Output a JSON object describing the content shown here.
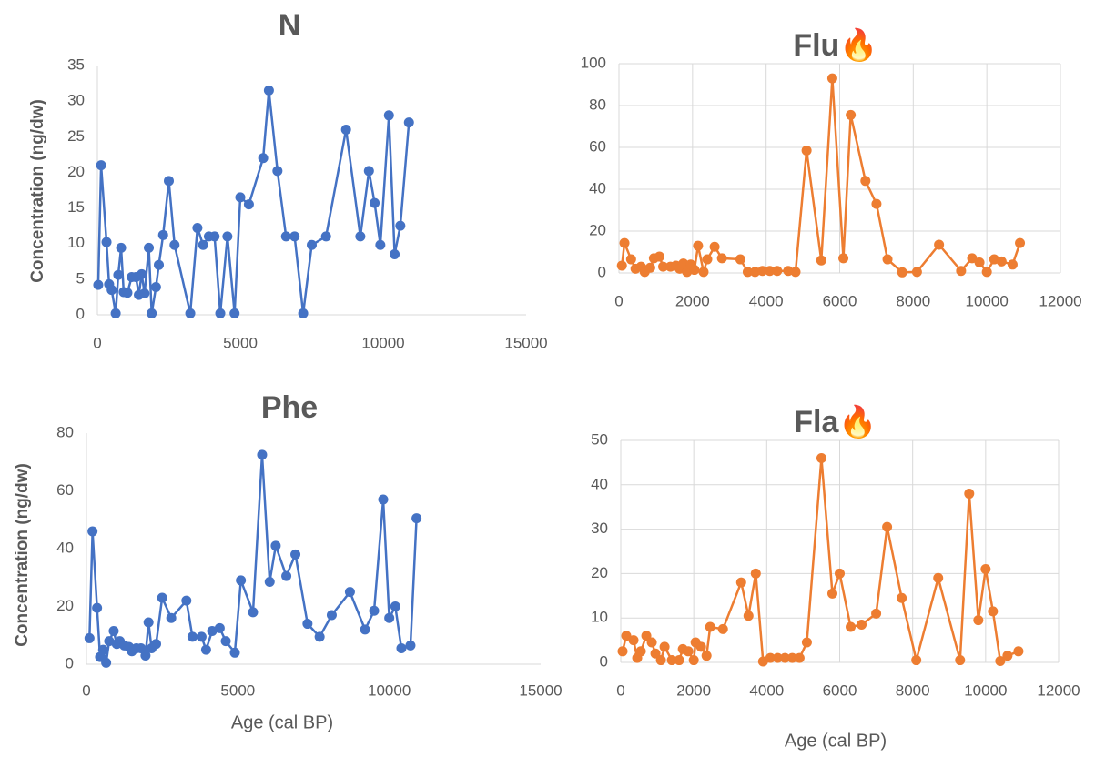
{
  "chart_data": [
    {
      "type": "line",
      "title": "N",
      "y_label": "Concentration (ng/dw)",
      "color": "#4472c4",
      "grid": false,
      "x": [
        30,
        130,
        320,
        410,
        500,
        640,
        730,
        830,
        920,
        1050,
        1200,
        1350,
        1450,
        1550,
        1650,
        1800,
        1900,
        2050,
        2150,
        2300,
        2500,
        2700,
        3250,
        3500,
        3700,
        3900,
        4100,
        4300,
        4550,
        4800,
        5000,
        5300,
        5800,
        6000,
        6300,
        6600,
        6900,
        7200,
        7500,
        8000,
        8700,
        9200,
        9500,
        9700,
        9900,
        10200,
        10400,
        10600,
        10900
      ],
      "values": [
        4.2,
        21,
        10.2,
        4.3,
        3.5,
        0.2,
        5.6,
        9.4,
        3.2,
        3.1,
        5.3,
        5.3,
        2.8,
        5.7,
        3,
        9.4,
        0.2,
        3.9,
        7,
        11.2,
        18.8,
        9.8,
        0.2,
        12.2,
        9.8,
        11,
        11,
        0.2,
        11,
        0.2,
        16.5,
        15.5,
        22,
        31.5,
        20.2,
        11,
        11,
        0.2,
        9.8,
        11,
        26,
        11,
        20.2,
        15.7,
        9.8,
        28,
        8.5,
        12.5,
        27
      ],
      "xlim": [
        0,
        15000
      ],
      "xticks": [
        0,
        5000,
        10000,
        15000
      ],
      "ylim": [
        0,
        35
      ],
      "yticks": [
        0,
        5,
        10,
        15,
        20,
        25,
        30,
        35
      ]
    },
    {
      "type": "line",
      "title": "Flu🔥",
      "color": "#ed7d31",
      "grid": true,
      "x": [
        80,
        150,
        330,
        450,
        600,
        700,
        850,
        950,
        1100,
        1200,
        1400,
        1550,
        1650,
        1750,
        1850,
        1950,
        2050,
        2150,
        2300,
        2400,
        2600,
        2800,
        3300,
        3500,
        3700,
        3900,
        4100,
        4300,
        4600,
        4800,
        5100,
        5500,
        5800,
        6100,
        6300,
        6700,
        7000,
        7300,
        7700,
        8100,
        8700,
        9300,
        9600,
        9800,
        10000,
        10200,
        10400,
        10700,
        10900
      ],
      "values": [
        3.5,
        14.3,
        6.5,
        2,
        3,
        0.5,
        2.5,
        7,
        7.8,
        3,
        3,
        3.5,
        2,
        4.5,
        0.5,
        4,
        1.5,
        13,
        0.5,
        6.5,
        12.5,
        7,
        6.5,
        0.5,
        0.5,
        1,
        1,
        1,
        1,
        0.5,
        58.5,
        6,
        93,
        7,
        75.5,
        44,
        33,
        6.5,
        0.3,
        0.5,
        13.5,
        1,
        7,
        5,
        0.5,
        6.5,
        5.5,
        4,
        14.3
      ],
      "xlim": [
        0,
        12000
      ],
      "xticks": [
        0,
        2000,
        4000,
        6000,
        8000,
        10000,
        12000
      ],
      "ylim": [
        0,
        100
      ],
      "yticks": [
        0,
        20,
        40,
        60,
        80,
        100
      ]
    },
    {
      "type": "line",
      "title": "Phe",
      "y_label": "Concentration (ng/dw)",
      "x_label": "Age (cal BP)",
      "color": "#4472c4",
      "grid": false,
      "x": [
        100,
        200,
        350,
        450,
        550,
        650,
        750,
        900,
        1000,
        1100,
        1250,
        1400,
        1500,
        1650,
        1800,
        1950,
        2050,
        2150,
        2300,
        2500,
        2800,
        3300,
        3500,
        3800,
        3950,
        4150,
        4400,
        4600,
        4900,
        5100,
        5500,
        5800,
        6050,
        6250,
        6600,
        6900,
        7300,
        7700,
        8100,
        8700,
        9200,
        9500,
        9800,
        10000,
        10200,
        10400,
        10700,
        10900
      ],
      "values": [
        9,
        46,
        19.5,
        2.5,
        5,
        0.5,
        8,
        11.5,
        7,
        8,
        6.5,
        6,
        4.5,
        5.5,
        5.5,
        3,
        14.5,
        5.5,
        7,
        23,
        16,
        22,
        9.5,
        9.5,
        5,
        11.5,
        12.5,
        8,
        4,
        29,
        18,
        72.5,
        28.5,
        41,
        30.5,
        38,
        14,
        9.5,
        17,
        25,
        12,
        18.5,
        57,
        16,
        20,
        5.5,
        6.5,
        50.5
      ],
      "xlim": [
        0,
        15000
      ],
      "xticks": [
        0,
        5000,
        10000,
        15000
      ],
      "ylim": [
        0,
        80
      ],
      "yticks": [
        0,
        20,
        40,
        60,
        80
      ]
    },
    {
      "type": "line",
      "title": "Fla🔥",
      "x_label": "Age (cal BP)",
      "color": "#ed7d31",
      "grid": true,
      "x": [
        50,
        150,
        350,
        450,
        550,
        700,
        850,
        950,
        1100,
        1200,
        1400,
        1600,
        1700,
        1850,
        2000,
        2050,
        2200,
        2350,
        2450,
        2800,
        3300,
        3500,
        3700,
        3900,
        4100,
        4300,
        4500,
        4700,
        4900,
        5100,
        5500,
        5800,
        6000,
        6300,
        6600,
        7000,
        7300,
        7700,
        8100,
        8700,
        9300,
        9550,
        9800,
        10000,
        10200,
        10400,
        10600,
        10900
      ],
      "values": [
        2.5,
        6,
        5,
        1,
        2.5,
        6,
        4.5,
        2,
        0.5,
        3.5,
        0.5,
        0.5,
        3,
        2.5,
        0.5,
        4.5,
        3.5,
        1.5,
        8,
        7.5,
        18,
        10.5,
        20,
        0.2,
        1,
        1,
        1,
        1,
        1,
        4.5,
        46,
        15.5,
        20,
        8,
        8.5,
        11,
        30.5,
        14.5,
        0.5,
        19,
        0.5,
        38,
        9.5,
        21,
        11.5,
        0.3,
        1.5,
        2.5
      ],
      "xlim": [
        0,
        12000
      ],
      "xticks": [
        0,
        2000,
        4000,
        6000,
        8000,
        10000,
        12000
      ],
      "ylim": [
        0,
        50
      ],
      "yticks": [
        0,
        10,
        20,
        30,
        40,
        50
      ]
    }
  ]
}
